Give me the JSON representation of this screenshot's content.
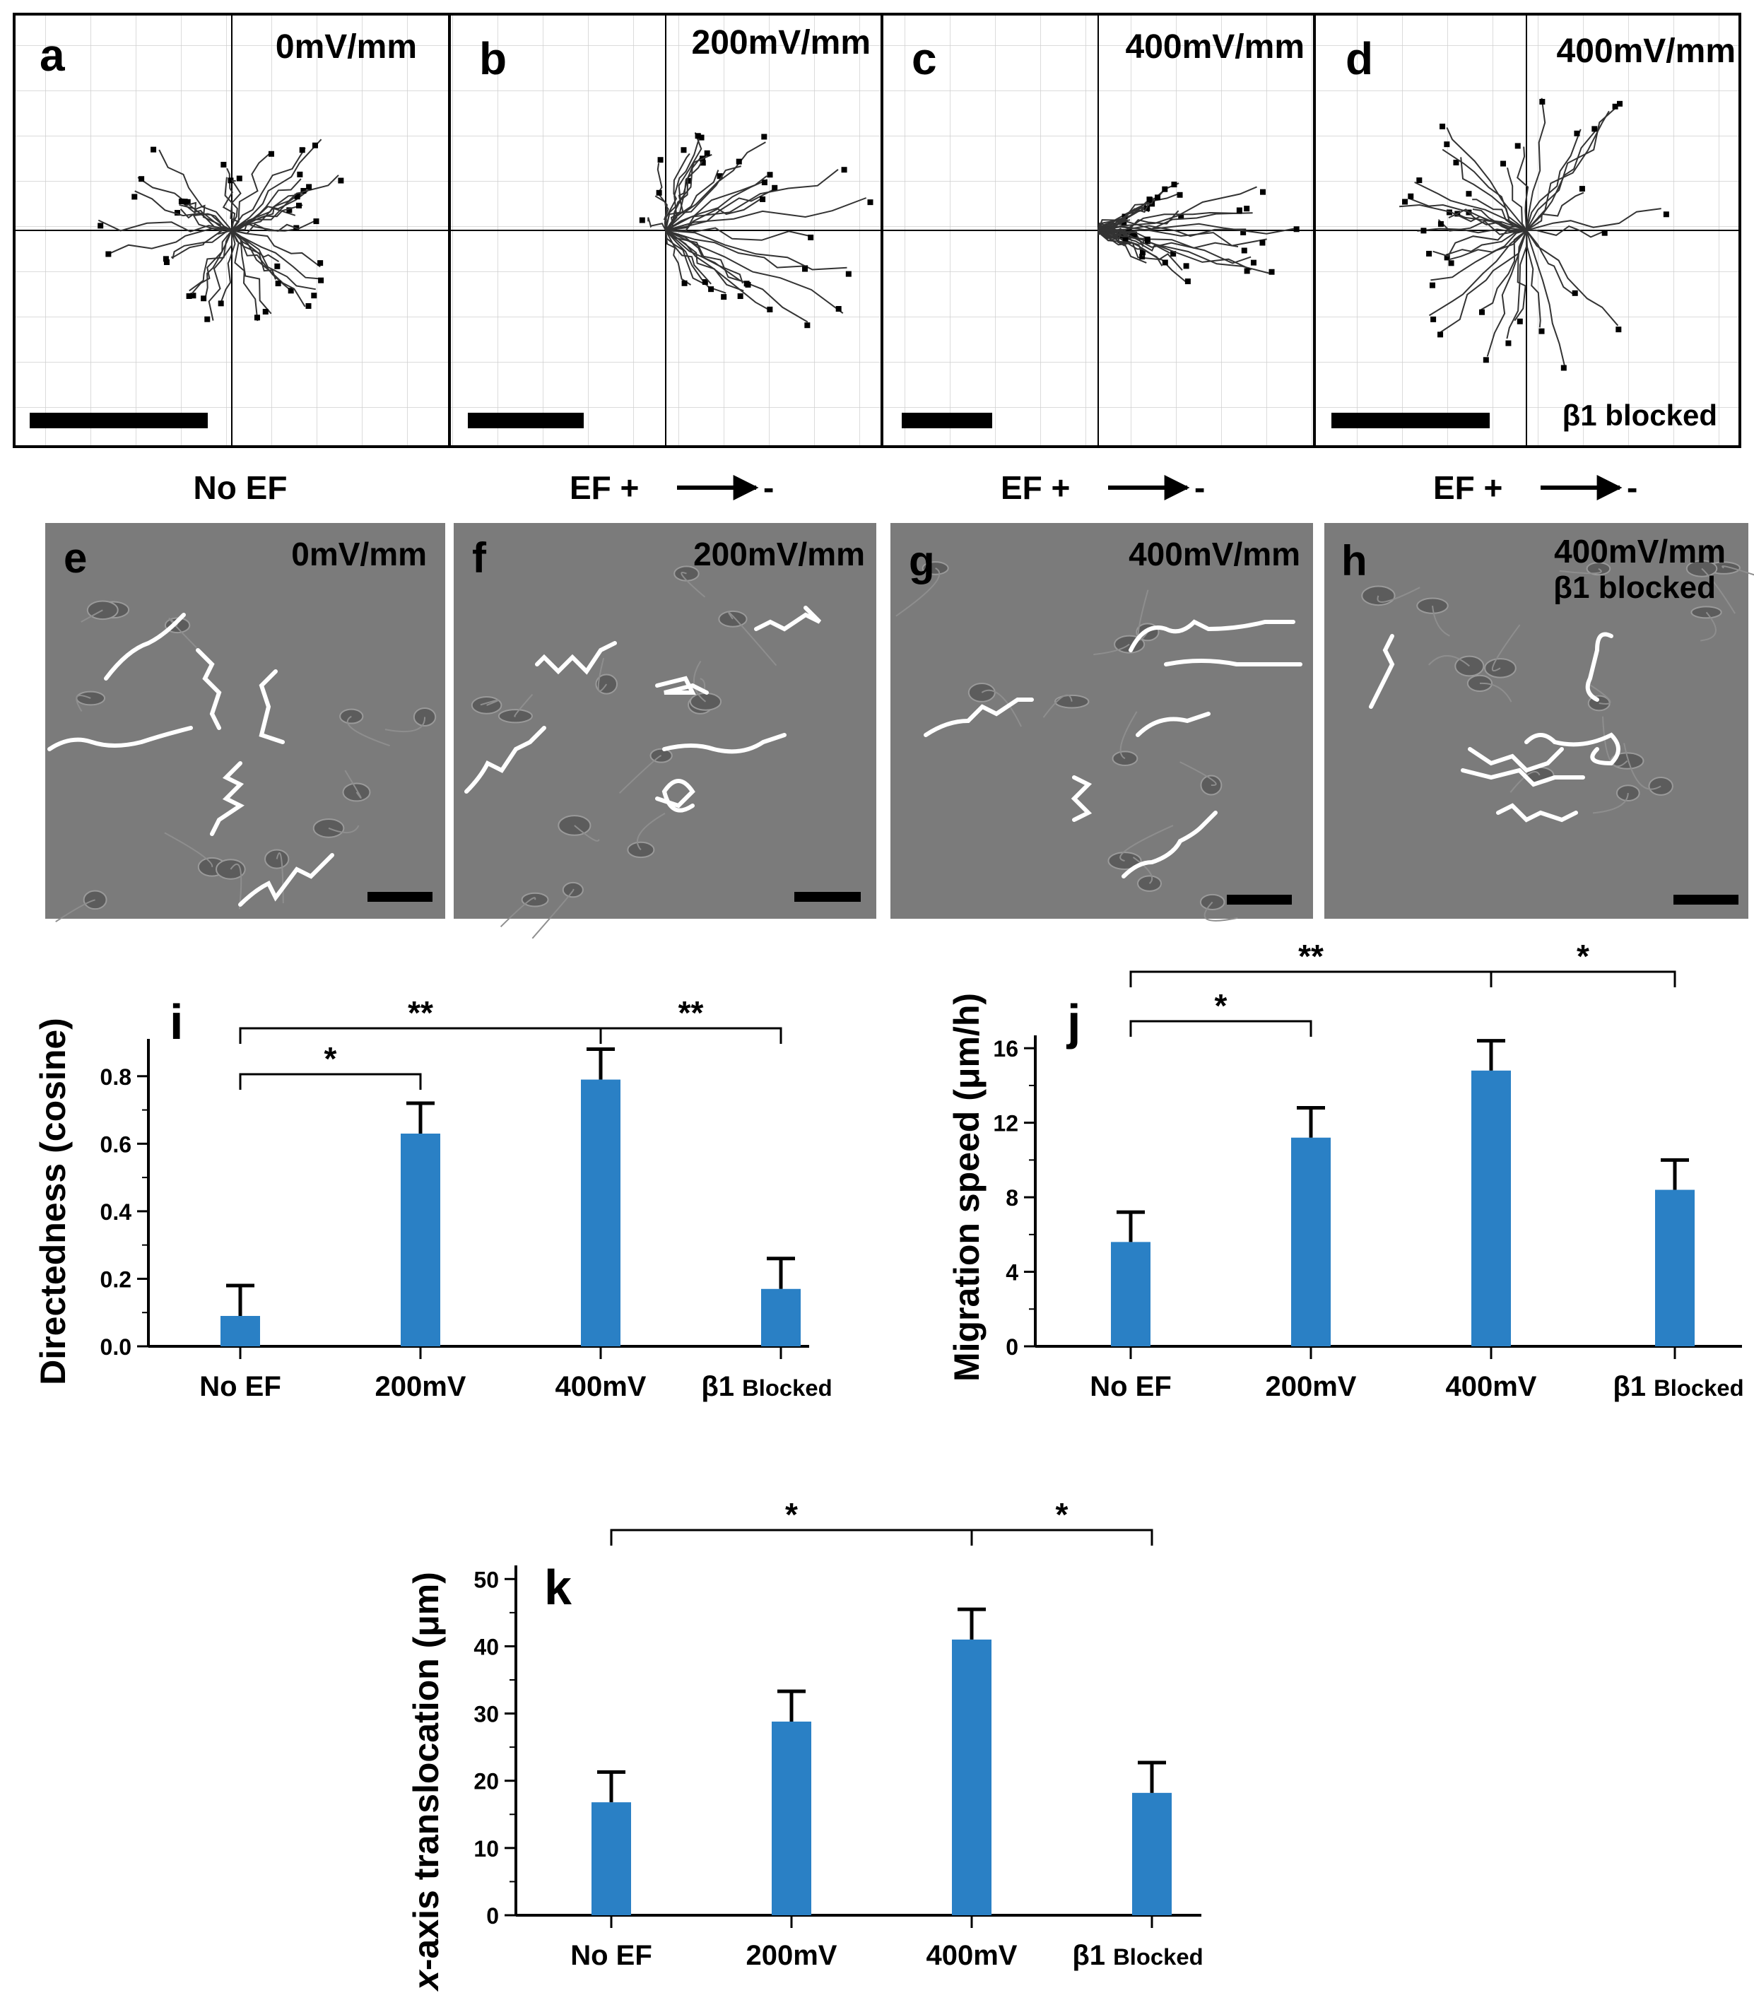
{
  "colors": {
    "bar": "#2a80c5",
    "ink": "#000000",
    "grid": "#cfcfcf",
    "micrograph": "#7b7b7b",
    "track_white": "#ffffff"
  },
  "top_panels": [
    {
      "letter": "a",
      "field": "0mV/mm",
      "condition": "No EF",
      "note": ""
    },
    {
      "letter": "b",
      "field": "200mV/mm",
      "condition": "EF  +",
      "note": ""
    },
    {
      "letter": "c",
      "field": "400mV/mm",
      "condition": "EF  +",
      "note": ""
    },
    {
      "letter": "d",
      "field": "400mV/mm",
      "condition": "EF  +",
      "note": "β1 blocked"
    }
  ],
  "polarity_minus": "-",
  "micro_panels": [
    {
      "letter": "e",
      "field": "0mV/mm",
      "note": ""
    },
    {
      "letter": "f",
      "field": "200mV/mm",
      "note": ""
    },
    {
      "letter": "g",
      "field": "400mV/mm",
      "note": ""
    },
    {
      "letter": "h",
      "field": "400mV/mm",
      "note": "β1 blocked"
    }
  ],
  "chart_data": [
    {
      "panel": "i",
      "type": "bar",
      "title": "",
      "xlabel": "",
      "ylabel": "Directedness (cosine)",
      "categories": [
        "No EF",
        "200mV",
        "400mV",
        "β1 Blocked"
      ],
      "values": [
        0.09,
        0.63,
        0.79,
        0.17
      ],
      "errors": [
        0.09,
        0.09,
        0.09,
        0.09
      ],
      "ylim": [
        0,
        0.9
      ],
      "yticks": [
        "0.0",
        "0.2",
        "0.4",
        "0.6",
        "0.8"
      ],
      "ytick_values": [
        0,
        0.2,
        0.4,
        0.6,
        0.8
      ],
      "significance": [
        {
          "from": 0,
          "to": 1,
          "label": "*"
        },
        {
          "from": 0,
          "to": 2,
          "label": "**"
        },
        {
          "from": 2,
          "to": 3,
          "label": "**"
        }
      ]
    },
    {
      "panel": "j",
      "type": "bar",
      "title": "",
      "xlabel": "",
      "ylabel": "Migration speed (μm/h)",
      "categories": [
        "No EF",
        "200mV",
        "400mV",
        "β1 Blocked"
      ],
      "values": [
        5.6,
        11.2,
        14.8,
        8.4
      ],
      "errors": [
        1.6,
        1.6,
        1.6,
        1.6
      ],
      "ylim": [
        0,
        16.5
      ],
      "yticks": [
        "0",
        "4",
        "8",
        "12",
        "16"
      ],
      "ytick_values": [
        0,
        4,
        8,
        12,
        16
      ],
      "significance": [
        {
          "from": 0,
          "to": 1,
          "label": "*"
        },
        {
          "from": 0,
          "to": 2,
          "label": "**"
        },
        {
          "from": 2,
          "to": 3,
          "label": "*"
        }
      ]
    },
    {
      "panel": "k",
      "type": "bar",
      "title": "",
      "xlabel": "",
      "ylabel": "x-axis translocation (μm)",
      "categories": [
        "No EF",
        "200mV",
        "400mV",
        "β1 Blocked"
      ],
      "values": [
        16.8,
        28.8,
        41.0,
        18.2
      ],
      "errors": [
        4.5,
        4.5,
        4.5,
        4.5
      ],
      "ylim": [
        0,
        51.5
      ],
      "yticks": [
        "0",
        "10",
        "20",
        "30",
        "40",
        "50"
      ],
      "ytick_values": [
        0,
        10,
        20,
        30,
        40,
        50
      ],
      "significance": [
        {
          "from": 0,
          "to": 2,
          "label": "*"
        },
        {
          "from": 2,
          "to": 3,
          "label": "*"
        }
      ]
    }
  ]
}
